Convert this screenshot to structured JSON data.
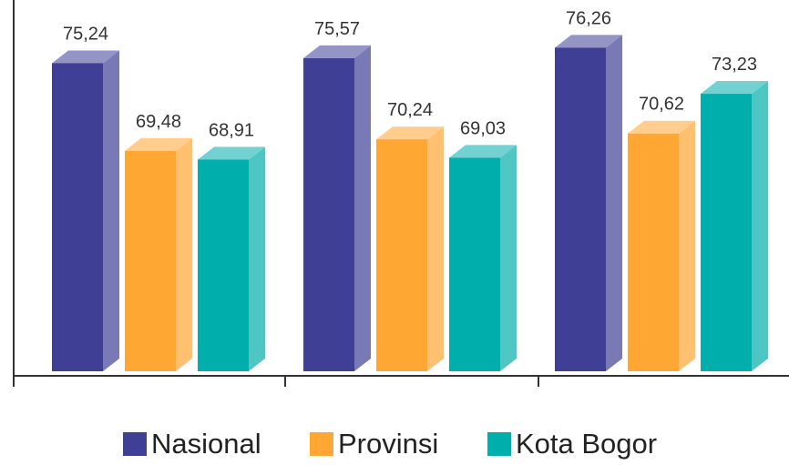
{
  "chart_data": {
    "type": "bar3d",
    "categories": [
      null,
      null,
      null
    ],
    "series": [
      {
        "name": "Nasional",
        "color": "#3f3f96",
        "values": [
          75.24,
          75.57,
          76.26
        ],
        "value_labels": [
          "75,24",
          "75,57",
          "76,26"
        ]
      },
      {
        "name": "Provinsi",
        "color": "#ffa633",
        "values": [
          69.48,
          70.24,
          70.62
        ],
        "value_labels": [
          "69,48",
          "70,24",
          "70,62"
        ]
      },
      {
        "name": "Kota Bogor",
        "color": "#00aeab",
        "values": [
          68.91,
          69.03,
          73.23
        ],
        "value_labels": [
          "68,91",
          "69,03",
          "73,23"
        ]
      }
    ],
    "ylim": [
      55,
      77
    ],
    "legend": "bottom"
  }
}
